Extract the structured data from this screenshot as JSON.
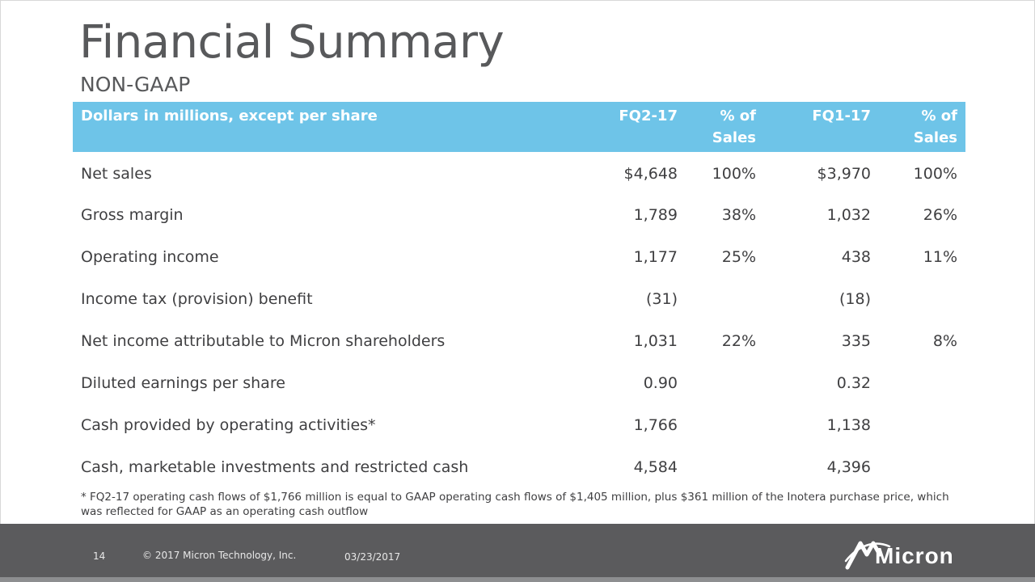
{
  "slide": {
    "title": "Financial Summary",
    "subtitle": "NON-GAAP"
  },
  "table": {
    "headers": {
      "description": "Dollars in millions, except per share",
      "fq2": "FQ2-17",
      "pct_sales_1": "% of Sales",
      "fq1": "FQ1-17",
      "pct_sales_2": "% of Sales"
    },
    "rows": [
      {
        "label": "Net sales",
        "fq2": "$4,648",
        "fq2_pct": "100%",
        "fq1": "$3,970",
        "fq1_pct": "100%"
      },
      {
        "label": "Gross margin",
        "fq2": "1,789",
        "fq2_pct": "38%",
        "fq1": "1,032",
        "fq1_pct": "26%"
      },
      {
        "label": "Operating income",
        "fq2": "1,177",
        "fq2_pct": "25%",
        "fq1": "438",
        "fq1_pct": "11%"
      },
      {
        "label": "Income tax (provision) benefit",
        "fq2": "(31)",
        "fq2_pct": "",
        "fq1": "(18)",
        "fq1_pct": ""
      },
      {
        "label": "Net income attributable to Micron shareholders",
        "fq2": "1,031",
        "fq2_pct": "22%",
        "fq1": "335",
        "fq1_pct": "8%"
      },
      {
        "label": "Diluted earnings per share",
        "fq2": "0.90",
        "fq2_pct": "",
        "fq1": "0.32",
        "fq1_pct": ""
      },
      {
        "label": "Cash provided by operating activities*",
        "fq2": "1,766",
        "fq2_pct": "",
        "fq1": "1,138",
        "fq1_pct": ""
      },
      {
        "label": "Cash, marketable investments and restricted cash",
        "fq2": "4,584",
        "fq2_pct": "",
        "fq1": "4,396",
        "fq1_pct": ""
      }
    ]
  },
  "footnote": "* FQ2-17 operating cash flows of $1,766 million is equal to GAAP operating cash flows of $1,405 million, plus $361 million of the Inotera purchase price, which was reflected for GAAP as an operating cash outflow",
  "footer": {
    "page_number": "14",
    "copyright": "© 2017 Micron Technology, Inc.",
    "date": "03/23/2017",
    "logo_text": "Micron",
    "logo_icon": "micron-logo-icon"
  },
  "colors": {
    "header_bg": "#6ec4e8",
    "title": "#58595b",
    "footer_bg": "#5b5b5d"
  }
}
